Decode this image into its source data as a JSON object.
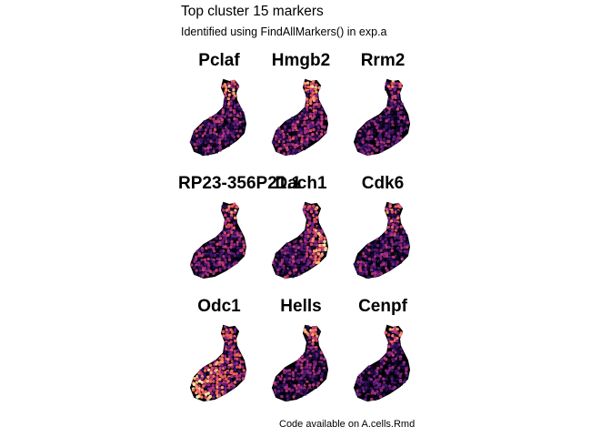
{
  "chart_data": {
    "type": "scatter",
    "title": "Top cluster 15 markers",
    "subtitle": "Identified using FindAllMarkers() in exp.a",
    "caption": "Code available on A.cells.Rmd",
    "colormap": [
      "#000004",
      "#2c115f",
      "#721f81",
      "#b73779",
      "#f1605d",
      "#feb078",
      "#fcfdbf"
    ],
    "outline_color": "#000000",
    "panels": [
      {
        "gene": "Pclaf",
        "high_region": "top",
        "level": 0.45
      },
      {
        "gene": "Hmgb2",
        "high_region": "top",
        "level": 0.55
      },
      {
        "gene": "Rrm2",
        "high_region": "top",
        "level": 0.35
      },
      {
        "gene": "RP23-356P21.1",
        "high_region": "top",
        "level": 0.45
      },
      {
        "gene": "Dach1",
        "high_region": "right",
        "level": 0.5
      },
      {
        "gene": "Cdk6",
        "high_region": "top",
        "level": 0.4
      },
      {
        "gene": "Odc1",
        "high_region": "bottom-left",
        "level": 0.65
      },
      {
        "gene": "Hells",
        "high_region": "top",
        "level": 0.4
      },
      {
        "gene": "Cenpf",
        "high_region": "top",
        "level": 0.3
      }
    ]
  }
}
